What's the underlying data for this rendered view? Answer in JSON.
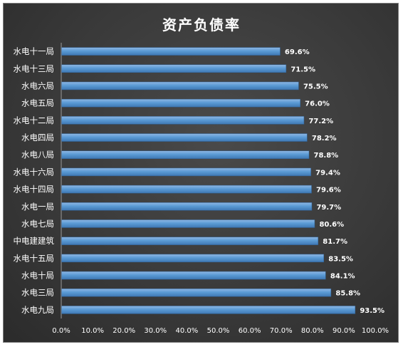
{
  "chart_data": {
    "type": "bar",
    "orientation": "horizontal",
    "title": "资产负债率",
    "categories": [
      "水电十一局",
      "水电十三局",
      "水电六局",
      "水电五局",
      "水电十二局",
      "水电四局",
      "水电八局",
      "水电十六局",
      "水电十四局",
      "水电一局",
      "水电七局",
      "中电建建筑",
      "水电十五局",
      "水电十局",
      "水电三局",
      "水电九局"
    ],
    "values": [
      69.6,
      71.5,
      75.5,
      76.0,
      77.2,
      78.2,
      78.8,
      79.4,
      79.6,
      79.7,
      80.6,
      81.7,
      83.5,
      84.1,
      85.8,
      93.5
    ],
    "value_labels": [
      "69.6%",
      "71.5%",
      "75.5%",
      "76.0%",
      "77.2%",
      "78.2%",
      "78.8%",
      "79.4%",
      "79.6%",
      "79.7%",
      "80.6%",
      "81.7%",
      "83.5%",
      "84.1%",
      "85.8%",
      "93.5%"
    ],
    "xlim": [
      0,
      100
    ],
    "xticks": [
      "0.0%",
      "10.0%",
      "20.0%",
      "30.0%",
      "40.0%",
      "50.0%",
      "60.0%",
      "70.0%",
      "80.0%",
      "90.0%",
      "100.0%"
    ],
    "xlabel": "",
    "ylabel": "",
    "grid": false,
    "legend": "none",
    "colors": {
      "bar_top": "#8fb7e3",
      "bar_mid": "#5b9bd5",
      "bar_bottom": "#3f78b4",
      "background": "#3a3a3a",
      "text": "#ffffff",
      "axis": "#9a9a9a"
    }
  }
}
